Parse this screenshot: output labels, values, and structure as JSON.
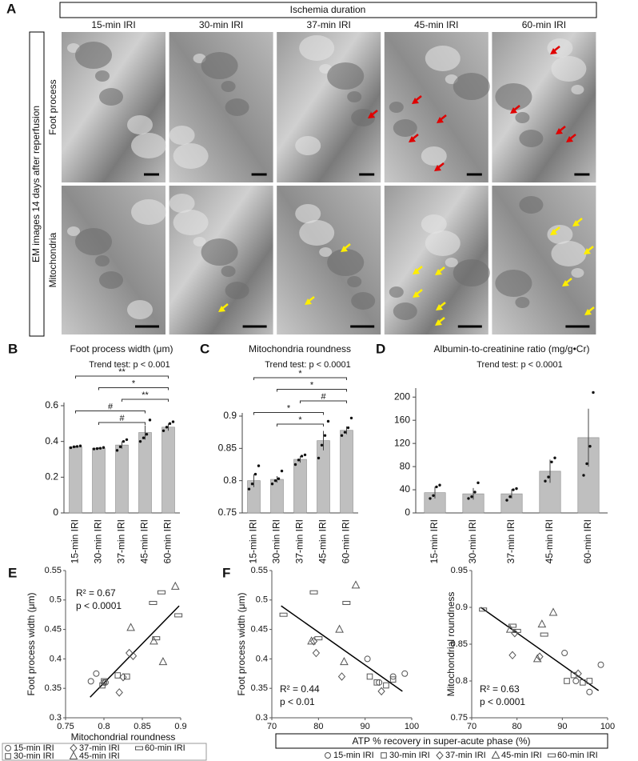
{
  "em_figure": {
    "panel": "A",
    "header": "Ischemia duration",
    "columns": [
      "15-min IRI",
      "30-min IRI",
      "37-min IRI",
      "45-min IRI",
      "60-min IRI"
    ],
    "side_label": "EM images 14 days after reperfusion",
    "rows": [
      "Foot process",
      "Mitochondria"
    ]
  },
  "chart_data": [
    {
      "type": "bar",
      "panel": "B",
      "title": "Foot process width (μm)",
      "annotation": "Trend test: p < 0.001",
      "categories": [
        "15-min IRI",
        "30-min IRI",
        "37-min IRI",
        "45-min IRI",
        "60-min IRI"
      ],
      "values": [
        0.37,
        0.362,
        0.38,
        0.45,
        0.48
      ],
      "errors": [
        0.005,
        0.004,
        0.02,
        0.04,
        0.02
      ],
      "points": [
        [
          0.365,
          0.37,
          0.372,
          0.375
        ],
        [
          0.358,
          0.36,
          0.362,
          0.366
        ],
        [
          0.35,
          0.37,
          0.4,
          0.41
        ],
        [
          0.4,
          0.42,
          0.44,
          0.52
        ],
        [
          0.46,
          0.48,
          0.5,
          0.51
        ]
      ],
      "color": "#bfbfbf",
      "ylim": [
        0,
        0.6
      ],
      "yticks": [
        0,
        0.2,
        0.4,
        0.6
      ],
      "brackets": [
        {
          "between": [
            "15-min IRI",
            "60-min IRI"
          ],
          "label": "**"
        },
        {
          "between": [
            "30-min IRI",
            "60-min IRI"
          ],
          "label": "*"
        },
        {
          "between": [
            "37-min IRI",
            "60-min IRI"
          ],
          "label": "**"
        },
        {
          "between": [
            "15-min IRI",
            "45-min IRI"
          ],
          "label": "#"
        },
        {
          "between": [
            "30-min IRI",
            "45-min IRI"
          ],
          "label": "#"
        }
      ]
    },
    {
      "type": "bar",
      "panel": "C",
      "title": "Mitochondria roundness",
      "annotation": "Trend test: p < 0.0001",
      "categories": [
        "15-min IRI",
        "30-min IRI",
        "37-min IRI",
        "45-min IRI",
        "60-min IRI"
      ],
      "values": [
        0.8,
        0.802,
        0.833,
        0.862,
        0.878
      ],
      "errors": [
        0.01,
        0.005,
        0.005,
        0.015,
        0.006
      ],
      "points": [
        [
          0.787,
          0.795,
          0.81,
          0.823
        ],
        [
          0.795,
          0.8,
          0.803,
          0.815
        ],
        [
          0.825,
          0.832,
          0.838,
          0.84
        ],
        [
          0.835,
          0.855,
          0.87,
          0.892
        ],
        [
          0.87,
          0.875,
          0.882,
          0.897
        ]
      ],
      "color": "#bfbfbf",
      "ylim": [
        0.75,
        0.9
      ],
      "yticks": [
        0.75,
        0.8,
        0.85,
        0.9
      ],
      "brackets": [
        {
          "between": [
            "15-min IRI",
            "60-min IRI"
          ],
          "label": "*"
        },
        {
          "between": [
            "30-min IRI",
            "60-min IRI"
          ],
          "label": "*"
        },
        {
          "between": [
            "37-min IRI",
            "60-min IRI"
          ],
          "label": "#"
        },
        {
          "between": [
            "15-min IRI",
            "45-min IRI"
          ],
          "label": "*"
        },
        {
          "between": [
            "30-min IRI",
            "45-min IRI"
          ],
          "label": "*"
        }
      ]
    },
    {
      "type": "bar",
      "panel": "D",
      "title": "Albumin-to-creatinine ratio (mg/g•Cr)",
      "annotation": "Trend test: p < 0.0001",
      "categories": [
        "15-min IRI",
        "30-min IRI",
        "37-min IRI",
        "45-min IRI",
        "60-min IRI"
      ],
      "values": [
        35,
        33,
        33,
        72,
        130
      ],
      "errors": [
        10,
        10,
        8,
        20,
        50
      ],
      "points": [
        [
          25,
          30,
          45,
          48
        ],
        [
          25,
          28,
          36,
          52
        ],
        [
          22,
          28,
          40,
          42
        ],
        [
          55,
          62,
          88,
          95
        ],
        [
          65,
          85,
          115,
          208
        ]
      ],
      "color": "#bfbfbf",
      "ylim": [
        0,
        210
      ],
      "yticks": [
        0,
        40,
        80,
        120,
        160,
        200
      ],
      "brackets": []
    },
    {
      "type": "scatter",
      "panel": "E",
      "xlabel": "Mitochondrial roundness",
      "ylabel": "Foot process width (μm)",
      "legend": true,
      "xlim": [
        0.75,
        0.9
      ],
      "xticks": [
        0.75,
        0.8,
        0.85,
        0.9
      ],
      "ylim": [
        0.3,
        0.55
      ],
      "yticks": [
        0.3,
        0.35,
        0.4,
        0.45,
        0.5,
        0.55
      ],
      "series": [
        {
          "name": "15-min IRI",
          "marker": "circle",
          "color": "#555555",
          "x": [
            0.783,
            0.79,
            0.8,
            0.802
          ],
          "y": [
            0.362,
            0.375,
            0.36,
            0.36
          ]
        },
        {
          "name": "30-min IRI",
          "marker": "square",
          "color": "#555555",
          "x": [
            0.798,
            0.8,
            0.83,
            0.818
          ],
          "y": [
            0.355,
            0.362,
            0.37,
            0.372
          ]
        },
        {
          "name": "37-min IRI",
          "marker": "diamond",
          "color": "#555555",
          "x": [
            0.82,
            0.825,
            0.833,
            0.838
          ],
          "y": [
            0.343,
            0.369,
            0.41,
            0.405
          ]
        },
        {
          "name": "45-min IRI",
          "marker": "triangle",
          "color": "#555555",
          "x": [
            0.835,
            0.865,
            0.877,
            0.893
          ],
          "y": [
            0.453,
            0.43,
            0.395,
            0.523
          ]
        },
        {
          "name": "60-min IRI",
          "marker": "bar",
          "color": "#555555",
          "x": [
            0.864,
            0.868,
            0.875,
            0.897
          ],
          "y": [
            0.495,
            0.435,
            0.513,
            0.474
          ]
        }
      ],
      "trendline": {
        "x": [
          0.782,
          0.898
        ],
        "y": [
          0.335,
          0.49
        ]
      },
      "annotations": [
        "R² = 0.67",
        "p < 0.0001"
      ]
    },
    {
      "type": "scatter",
      "panel": "F",
      "xlabel": "ATP % recovery in super-acute phase (%)",
      "ylabel": "Foot process width (μm)",
      "legend": true,
      "xlim": [
        70,
        100
      ],
      "xticks": [
        70,
        80,
        90,
        100
      ],
      "ylim": [
        0.3,
        0.55
      ],
      "yticks": [
        0.3,
        0.35,
        0.4,
        0.45,
        0.5,
        0.55
      ],
      "series": [
        {
          "name": "15-min IRI",
          "marker": "circle",
          "color": "#555555",
          "x": [
            90.5,
            93,
            96,
            98.5
          ],
          "y": [
            0.4,
            0.36,
            0.37,
            0.375
          ]
        },
        {
          "name": "30-min IRI",
          "marker": "square",
          "color": "#555555",
          "x": [
            91,
            92.5,
            94.5,
            96
          ],
          "y": [
            0.37,
            0.36,
            0.355,
            0.365
          ]
        },
        {
          "name": "37-min IRI",
          "marker": "diamond",
          "color": "#555555",
          "x": [
            79,
            79.5,
            85,
            93.5
          ],
          "y": [
            0.43,
            0.41,
            0.37,
            0.345
          ]
        },
        {
          "name": "45-min IRI",
          "marker": "triangle",
          "color": "#555555",
          "x": [
            78.5,
            84.5,
            85.5,
            88
          ],
          "y": [
            0.43,
            0.45,
            0.395,
            0.525
          ]
        },
        {
          "name": "60-min IRI",
          "marker": "bar",
          "color": "#555555",
          "x": [
            72.5,
            79,
            80,
            86
          ],
          "y": [
            0.475,
            0.513,
            0.435,
            0.495
          ]
        }
      ],
      "trendline": {
        "x": [
          72,
          98
        ],
        "y": [
          0.49,
          0.345
        ]
      },
      "annotations": [
        "R² = 0.44",
        "p < 0.01"
      ]
    },
    {
      "type": "scatter",
      "ylabel": "Mitochondrial roundness",
      "xlim": [
        70,
        100
      ],
      "xticks": [
        70,
        80,
        90,
        100
      ],
      "ylim": [
        0.75,
        0.95
      ],
      "yticks": [
        0.75,
        0.8,
        0.85,
        0.9,
        0.95
      ],
      "series": [
        {
          "marker": "circle",
          "color": "#555555",
          "x": [
            90.5,
            93,
            96,
            98.5
          ],
          "y": [
            0.838,
            0.8,
            0.785,
            0.822
          ]
        },
        {
          "marker": "square",
          "color": "#555555",
          "x": [
            91,
            92.5,
            94.5,
            96
          ],
          "y": [
            0.8,
            0.808,
            0.798,
            0.8
          ]
        },
        {
          "marker": "diamond",
          "color": "#555555",
          "x": [
            79,
            79.5,
            85,
            93.5
          ],
          "y": [
            0.835,
            0.865,
            0.833,
            0.81
          ]
        },
        {
          "marker": "triangle",
          "color": "#555555",
          "x": [
            78.5,
            84.5,
            85.5,
            88
          ],
          "y": [
            0.87,
            0.83,
            0.877,
            0.893
          ]
        },
        {
          "marker": "bar",
          "color": "#555555",
          "x": [
            72.5,
            79,
            80,
            86
          ],
          "y": [
            0.897,
            0.875,
            0.868,
            0.863
          ]
        }
      ],
      "trendline": {
        "x": [
          72,
          98
        ],
        "y": [
          0.9,
          0.787
        ]
      },
      "annotations": [
        "R² = 0.63",
        "p < 0.0001"
      ]
    }
  ]
}
